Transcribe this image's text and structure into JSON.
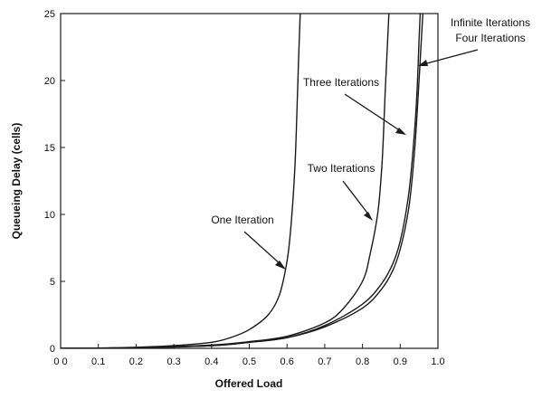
{
  "chart_data": {
    "type": "line",
    "xlabel": "Offered Load",
    "ylabel": "Queueing Delay (cells)",
    "xlim": [
      0.0,
      1.0
    ],
    "ylim": [
      0,
      25
    ],
    "grid": false,
    "x_ticks": [
      0.0,
      0.1,
      0.2,
      0.3,
      0.4,
      0.5,
      0.6,
      0.7,
      0.8,
      0.9,
      1.0
    ],
    "x_tick_labels": [
      "0 0",
      "0.1",
      "0.2",
      "0.3",
      "0.4",
      "0.5",
      "0.6",
      "0.7",
      "0.8",
      "0.9",
      "1.0"
    ],
    "y_ticks": [
      0,
      5,
      10,
      15,
      20,
      25
    ],
    "y_tick_labels": [
      "0",
      "5",
      "10",
      "15",
      "20",
      "25"
    ],
    "series": [
      {
        "name": "One Iteration",
        "x": [
          0.0,
          0.1,
          0.2,
          0.3,
          0.4,
          0.45,
          0.5,
          0.55,
          0.58,
          0.6,
          0.61,
          0.62,
          0.625,
          0.63,
          0.635
        ],
        "y": [
          0,
          0.02,
          0.08,
          0.2,
          0.45,
          0.8,
          1.4,
          2.5,
          4.0,
          6.5,
          9.0,
          13.0,
          16.5,
          21.0,
          25.0
        ]
      },
      {
        "name": "Two Iterations",
        "x": [
          0.0,
          0.2,
          0.4,
          0.5,
          0.6,
          0.7,
          0.75,
          0.8,
          0.82,
          0.84,
          0.85,
          0.855,
          0.86,
          0.865,
          0.87
        ],
        "y": [
          0,
          0.05,
          0.25,
          0.5,
          0.9,
          1.9,
          3.0,
          5.0,
          7.0,
          10.0,
          13.0,
          15.5,
          19.0,
          22.0,
          25.0
        ]
      },
      {
        "name": "Three Iterations",
        "x": [
          0.0,
          0.2,
          0.4,
          0.5,
          0.6,
          0.7,
          0.8,
          0.85,
          0.88,
          0.9,
          0.92,
          0.93,
          0.94,
          0.945,
          0.95,
          0.953
        ],
        "y": [
          0,
          0.05,
          0.2,
          0.45,
          0.8,
          1.7,
          3.3,
          4.8,
          6.3,
          8.0,
          11.0,
          13.5,
          17.0,
          19.5,
          23.0,
          25.0
        ]
      },
      {
        "name": "Infinite Iterations Four Iterations",
        "x": [
          0.0,
          0.2,
          0.4,
          0.5,
          0.6,
          0.7,
          0.8,
          0.85,
          0.88,
          0.9,
          0.92,
          0.93,
          0.94,
          0.95,
          0.955,
          0.96
        ],
        "y": [
          0,
          0.05,
          0.2,
          0.45,
          0.8,
          1.6,
          3.0,
          4.4,
          5.8,
          7.4,
          10.0,
          12.2,
          15.5,
          20.0,
          22.5,
          25.0
        ]
      }
    ],
    "annotations": [
      {
        "text": "One Iteration",
        "target_series": 0
      },
      {
        "text": "Two Iterations",
        "target_series": 1
      },
      {
        "text": "Three Iterations",
        "target_series": 2
      },
      {
        "text": "Infinite Iterations",
        "target_series": 3
      },
      {
        "text": "Four Iterations",
        "target_series": 3
      }
    ]
  }
}
